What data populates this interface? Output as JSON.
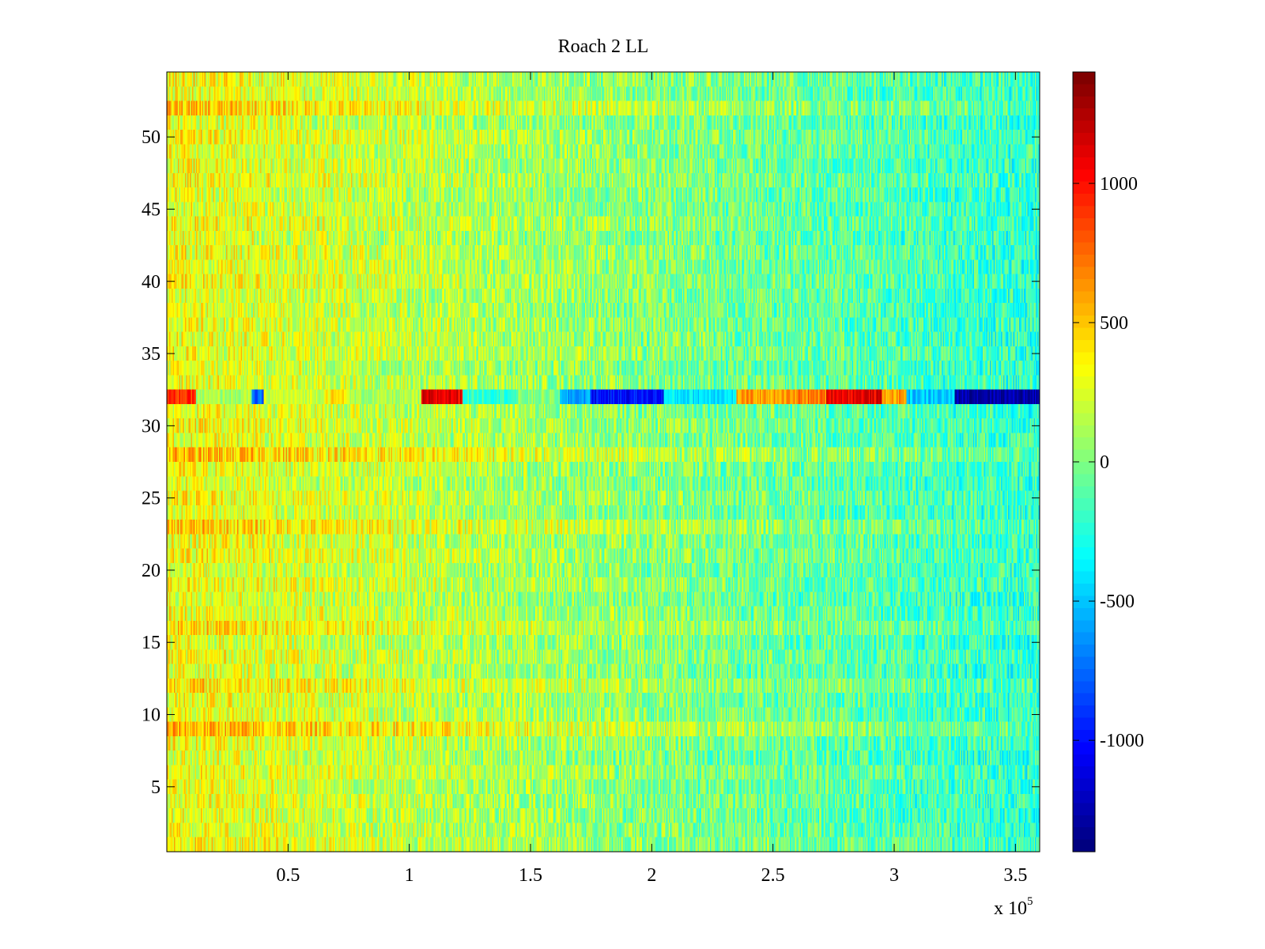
{
  "chart_data": {
    "type": "heatmap",
    "title": "Roach 2 LL",
    "xlabel": "",
    "ylabel": "",
    "x_multiplier_label": "x 10",
    "x_multiplier_exponent": "5",
    "xlim": [
      0,
      3.6
    ],
    "ylim": [
      0.5,
      54.5
    ],
    "x_unit_scale": 100000,
    "rows": 54,
    "columns": 720,
    "xticks": [
      0.5,
      1,
      1.5,
      2,
      2.5,
      3,
      3.5
    ],
    "xtick_labels": [
      "0.5",
      "1",
      "1.5",
      "2",
      "2.5",
      "3",
      "3.5"
    ],
    "yticks": [
      5,
      10,
      15,
      20,
      25,
      30,
      35,
      40,
      45,
      50
    ],
    "ytick_labels": [
      "5",
      "10",
      "15",
      "20",
      "25",
      "30",
      "35",
      "40",
      "45",
      "50"
    ],
    "colormap": "jet",
    "clim": [
      -1400,
      1400
    ],
    "colorbar_ticks": [
      1000,
      500,
      0,
      -500,
      -1000
    ],
    "colorbar_tick_labels": [
      "1000",
      "500",
      "0",
      "-500",
      "-1000"
    ],
    "colorbar_levels": 64,
    "value_trend": {
      "description": "values decrease from about +300 at left to about -200 at right, with per-cell noise",
      "start_mean": 320,
      "end_mean": -220,
      "noise_amplitude": 260
    },
    "row_offsets": [
      {
        "row": 9,
        "offset": 200
      },
      {
        "row": 12,
        "offset": 120
      },
      {
        "row": 16,
        "offset": 160
      },
      {
        "row": 23,
        "offset": 140
      },
      {
        "row": 28,
        "offset": 220
      },
      {
        "row": 52,
        "offset": 140
      }
    ],
    "anomaly_row": {
      "row": 32,
      "segments": [
        {
          "x_start": 0.0,
          "x_end": 0.12,
          "value": 900
        },
        {
          "x_start": 0.12,
          "x_end": 0.35,
          "value": 100
        },
        {
          "x_start": 0.35,
          "x_end": 0.4,
          "value": -800
        },
        {
          "x_start": 0.4,
          "x_end": 0.65,
          "value": 200
        },
        {
          "x_start": 0.65,
          "x_end": 0.75,
          "value": 400
        },
        {
          "x_start": 0.75,
          "x_end": 1.05,
          "value": 100
        },
        {
          "x_start": 1.05,
          "x_end": 1.22,
          "value": 1100
        },
        {
          "x_start": 1.22,
          "x_end": 1.45,
          "value": -200
        },
        {
          "x_start": 1.45,
          "x_end": 1.62,
          "value": 0
        },
        {
          "x_start": 1.62,
          "x_end": 1.75,
          "value": -600
        },
        {
          "x_start": 1.75,
          "x_end": 2.05,
          "value": -1000
        },
        {
          "x_start": 2.05,
          "x_end": 2.35,
          "value": -400
        },
        {
          "x_start": 2.35,
          "x_end": 2.6,
          "value": 600
        },
        {
          "x_start": 2.6,
          "x_end": 2.72,
          "value": 700
        },
        {
          "x_start": 2.72,
          "x_end": 2.95,
          "value": 1100
        },
        {
          "x_start": 2.95,
          "x_end": 3.05,
          "value": 600
        },
        {
          "x_start": 3.05,
          "x_end": 3.25,
          "value": -500
        },
        {
          "x_start": 3.25,
          "x_end": 3.6,
          "value": -1250
        }
      ]
    }
  }
}
